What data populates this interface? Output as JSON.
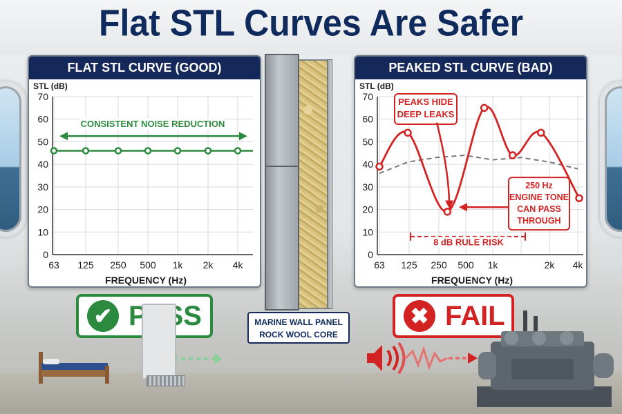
{
  "title": "Flat STL Curves Are Safer",
  "left_panel": {
    "header": "FLAT STL CURVE (GOOD)"
  },
  "right_panel": {
    "header": "PEAKED STL CURVE (BAD)"
  },
  "wall_label": {
    "line1": "MARINE WALL PANEL",
    "line2": "ROCK WOOL CORE"
  },
  "pass_badge": {
    "label": "PASS",
    "icon": "check-icon"
  },
  "fail_badge": {
    "label": "FAIL",
    "icon": "x-icon"
  },
  "colors": {
    "navy": "#14285a",
    "good": "#2b8a3e",
    "bad": "#d32222"
  },
  "chart_data": [
    {
      "type": "line",
      "title": "FLAT STL CURVE (GOOD)",
      "ylabel": "STL (dB)",
      "xlabel": "FREQUENCY (Hz)",
      "ylim": [
        0,
        70
      ],
      "yticks": [
        0,
        10,
        20,
        30,
        40,
        50,
        60,
        70
      ],
      "xtick_labels": [
        "63",
        "125",
        "250",
        "500",
        "1k",
        "2k",
        "4k"
      ],
      "grid": true,
      "series": [
        {
          "x": [
            "63",
            "125",
            "250",
            "500",
            "1k",
            "2k",
            "4k"
          ],
          "values": [
            46,
            46,
            46,
            46,
            46,
            46,
            46
          ]
        }
      ],
      "annotations": [
        "CONSISTENT NOISE REDUCTION"
      ]
    },
    {
      "type": "line",
      "title": "PEAKED STL CURVE (BAD)",
      "ylabel": "STL (dB)",
      "xlabel": "FREQUENCY (Hz)",
      "ylim": [
        0,
        70
      ],
      "yticks": [
        0,
        10,
        20,
        30,
        40,
        50,
        60,
        70
      ],
      "xtick_labels": [
        "63",
        "125",
        "250",
        "500",
        "1k",
        "2k",
        "4k"
      ],
      "grid": true,
      "series": [
        {
          "style": "solid-red",
          "points_x_index": [
            0,
            1,
            2.4,
            3.7,
            4.7,
            5.7,
            7.0
          ],
          "values": [
            39,
            54,
            19,
            65,
            44,
            54,
            25
          ]
        },
        {
          "style": "dashed-gray",
          "points_x_index": [
            0,
            1,
            2,
            3,
            4,
            5,
            6,
            7
          ],
          "values": [
            36,
            41,
            43,
            44,
            42,
            43,
            41,
            38
          ]
        }
      ],
      "annotations": [
        "PEAKS HIDE",
        "DEEP LEAKS",
        "250 Hz",
        "ENGINE TONE",
        "CAN PASS",
        "THROUGH",
        "8 dB RULE RISK"
      ]
    }
  ]
}
